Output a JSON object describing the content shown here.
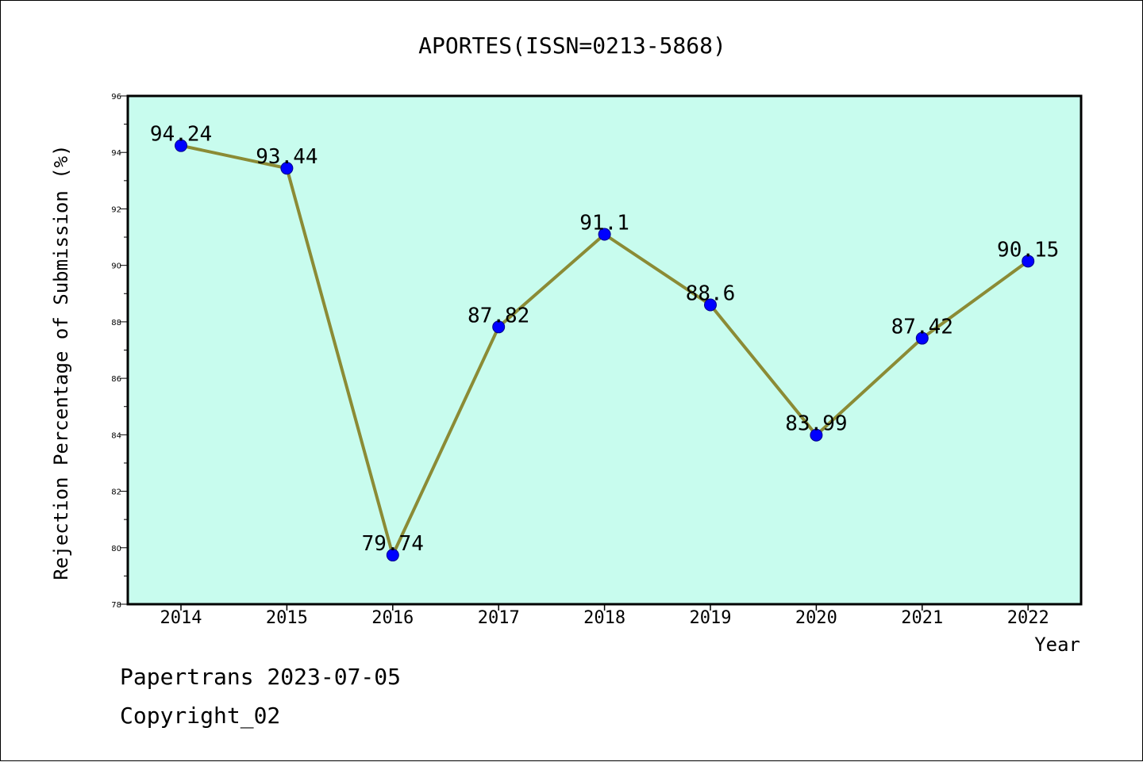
{
  "chart_data": {
    "type": "line",
    "title": "APORTES(ISSN=0213-5868)",
    "xlabel": "Year",
    "ylabel": "Rejection Percentage of Submission (%)",
    "categories": [
      "2014",
      "2015",
      "2016",
      "2017",
      "2018",
      "2019",
      "2020",
      "2021",
      "2022"
    ],
    "values": [
      94.24,
      93.44,
      79.74,
      87.82,
      91.1,
      88.6,
      83.99,
      87.42,
      90.15
    ],
    "data_labels": [
      "94.24",
      "93.44",
      "79.74",
      "87.82",
      "91.1",
      "88.6",
      "83.99",
      "87.42",
      "90.15"
    ],
    "ylim": [
      78,
      96
    ],
    "yticks": [
      78,
      80,
      82,
      84,
      86,
      88,
      90,
      92,
      94,
      96
    ],
    "grid": false,
    "colors": {
      "plot_background": "#c8fcee",
      "line": "#8b8b35",
      "marker": "#0000ff"
    }
  },
  "footer": {
    "line1": "Papertrans 2023-07-05",
    "line2": "Copyright_02"
  }
}
